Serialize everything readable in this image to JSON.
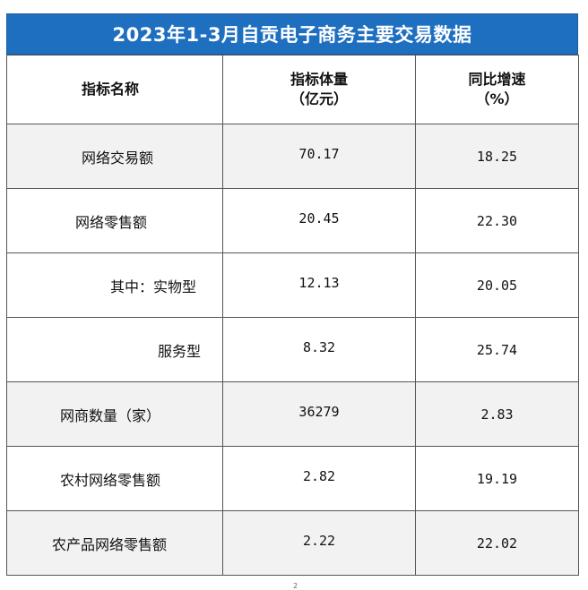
{
  "title": "2023年1-3月自贡电子商务主要交易数据",
  "headers": {
    "name": "指标名称",
    "volume_line1": "指标体量",
    "volume_line2": "（亿元）",
    "growth_line1": "同比增速",
    "growth_line2": "（%）"
  },
  "rows": [
    {
      "name": "网络交易额",
      "volume": "70.17",
      "growth": "18.25"
    },
    {
      "name": "网络零售额",
      "volume": "20.45",
      "growth": "22.30"
    },
    {
      "name": "其中：实物型",
      "volume": "12.13",
      "growth": "20.05"
    },
    {
      "name": "服务型",
      "volume": "8.32",
      "growth": "25.74"
    },
    {
      "name": "网商数量（家）",
      "volume": "36279",
      "growth": "2.83"
    },
    {
      "name": "农村网络零售额",
      "volume": "2.82",
      "growth": "19.19"
    },
    {
      "name": "农产品网络零售额",
      "volume": "2.22",
      "growth": "22.02"
    }
  ],
  "footer_mark": "2",
  "colors": {
    "title_bg": "#1f6fc1",
    "shaded_row": "#f2f2f2",
    "border": "#555555"
  }
}
